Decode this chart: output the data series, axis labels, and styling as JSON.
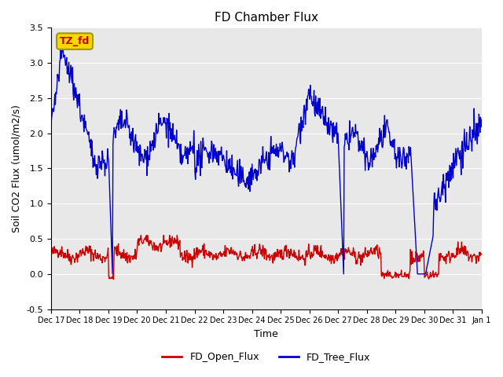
{
  "title": "FD Chamber Flux",
  "xlabel": "Time",
  "ylabel": "Soil CO2 Flux (umol/m2/s)",
  "ylim": [
    -0.5,
    3.5
  ],
  "yticks": [
    -0.5,
    0.0,
    0.5,
    1.0,
    1.5,
    2.0,
    2.5,
    3.0,
    3.5
  ],
  "xtick_labels": [
    "Dec 17",
    "Dec 18",
    "Dec 19",
    "Dec 20",
    "Dec 21",
    "Dec 22",
    "Dec 23",
    "Dec 24",
    "Dec 25",
    "Dec 26",
    "Dec 27",
    "Dec 28",
    "Dec 29",
    "Dec 30",
    "Dec 31",
    "Jan 1"
  ],
  "text_box_label": "TZ_fd",
  "text_box_color": "#FFD700",
  "text_box_text_color": "#CC0000",
  "open_flux_color": "#CC0000",
  "tree_flux_color": "#0000CC",
  "legend_open": "FD_Open_Flux",
  "legend_tree": "FD_Tree_Flux",
  "background_color": "#E8E8E8",
  "fig_background": "#FFFFFF",
  "line_width": 1.0
}
